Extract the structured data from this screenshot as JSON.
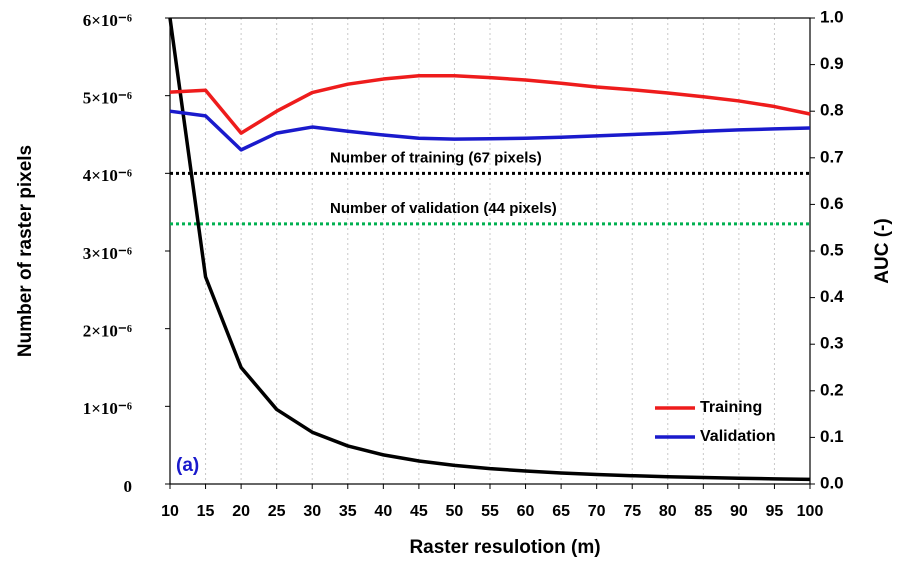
{
  "chart_data": {
    "type": "line",
    "x": [
      10,
      15,
      20,
      25,
      30,
      35,
      40,
      45,
      50,
      55,
      60,
      65,
      70,
      75,
      80,
      85,
      90,
      95,
      100
    ],
    "xlim": [
      10,
      100
    ],
    "xticks": [
      10,
      15,
      20,
      25,
      30,
      35,
      40,
      45,
      50,
      55,
      60,
      65,
      70,
      75,
      80,
      85,
      90,
      95,
      100
    ],
    "xlabel": "Raster resulotion (m)",
    "ylabel": "Number of raster pixels",
    "y2label": "AUC (-)",
    "ylim": [
      0,
      6e-06
    ],
    "yticks": [
      0,
      {
        "value": 1e-06,
        "label": "1×10⁻⁶"
      },
      {
        "value": 2e-06,
        "label": "2×10⁻⁶"
      },
      {
        "value": 3e-06,
        "label": "3×10⁻⁶"
      },
      {
        "value": 4e-06,
        "label": "4×10⁻⁶"
      },
      {
        "value": 5e-06,
        "label": "5×10⁻⁶"
      },
      {
        "value": 6e-06,
        "label": "6×10⁻⁶"
      }
    ],
    "y2lim": [
      0,
      1
    ],
    "y2ticks": [
      {
        "value": 0,
        "label": "0.0"
      },
      0.1,
      0.2,
      0.3,
      0.4,
      0.5,
      0.6,
      0.7,
      0.8,
      0.9,
      {
        "value": 1,
        "label": "1.0"
      }
    ],
    "grid": true,
    "legend": "lower right",
    "annotation": "(a)",
    "series": [
      {
        "color": "#000000",
        "values": [
          6e-06,
          2.667e-06,
          1.5e-06,
          9.6e-07,
          6.67e-07,
          4.9e-07,
          3.75e-07,
          2.96e-07,
          2.4e-07,
          1.98e-07,
          1.67e-07,
          1.42e-07,
          1.22e-07,
          1.07e-07,
          9.4e-08,
          8.3e-08,
          7.4e-08,
          6.6e-08,
          6e-08
        ]
      },
      {
        "name": "Training",
        "color": "#ee1c1c",
        "axis": "y2",
        "values": [
          0.841,
          0.845,
          0.753,
          0.8,
          0.84,
          0.858,
          0.869,
          0.876,
          0.876,
          0.872,
          0.867,
          0.86,
          0.852,
          0.846,
          0.839,
          0.831,
          0.822,
          0.81,
          0.794
        ]
      },
      {
        "name": "Validation",
        "color": "#1a1acc",
        "axis": "y2",
        "values": [
          0.8,
          0.79,
          0.717,
          0.753,
          0.766,
          0.757,
          0.749,
          0.742,
          0.74,
          0.741,
          0.742,
          0.744,
          0.747,
          0.75,
          0.753,
          0.757,
          0.76,
          0.762,
          0.764
        ]
      }
    ],
    "reference_lines": [
      {
        "value": 4e-06,
        "label": "Number of training (67 pixels)",
        "color": "#000000"
      },
      {
        "value": 3.35e-06,
        "label": "Number of validation (44 pixels)",
        "color": "#00b050"
      }
    ]
  }
}
